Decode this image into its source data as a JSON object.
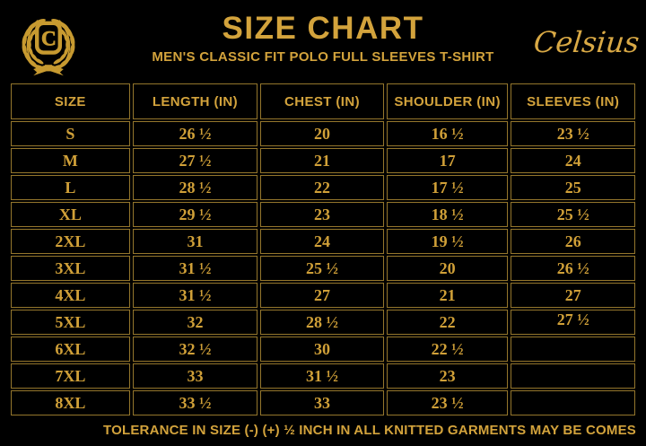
{
  "theme": {
    "background": "#000000",
    "gold_text": "#d3a33c",
    "gold_border": "#94762c",
    "gold_logo": "#c79a30"
  },
  "header": {
    "title": "SIZE CHART",
    "subtitle": "MEN'S CLASSIC FIT POLO FULL SLEEVES T-SHIRT",
    "brand": "Celsius",
    "logo_letter": "C",
    "logo_icon": "laurel-wreath-icon"
  },
  "table": {
    "columns": [
      "SIZE",
      "LENGTH (IN)",
      "CHEST (IN)",
      "SHOULDER (IN)",
      "SLEEVES (IN)"
    ],
    "rows": [
      [
        "S",
        "26 ½",
        "20",
        "16 ½",
        "23 ½"
      ],
      [
        "M",
        "27 ½",
        "21",
        "17",
        "24"
      ],
      [
        "L",
        "28 ½",
        "22",
        "17 ½",
        "25"
      ],
      [
        "XL",
        "29 ½",
        "23",
        "18 ½",
        "25 ½"
      ],
      [
        "2XL",
        "31",
        "24",
        "19 ½",
        "26"
      ],
      [
        "3XL",
        "31 ½",
        "25 ½",
        "20",
        "26 ½"
      ],
      [
        "4XL",
        "31 ½",
        "27",
        "21",
        "27"
      ],
      [
        "5XL",
        "32",
        "28 ½",
        "22",
        "27 ½"
      ],
      [
        "6XL",
        "32 ½",
        "30",
        "22 ½",
        ""
      ],
      [
        "7XL",
        "33",
        "31 ½",
        "23",
        ""
      ],
      [
        "8XL",
        "33 ½",
        "33",
        "23 ½",
        ""
      ]
    ]
  },
  "footer": {
    "note": "TOLERANCE IN SIZE (-) (+) ½ INCH IN ALL KNITTED GARMENTS MAY BE COMES"
  }
}
